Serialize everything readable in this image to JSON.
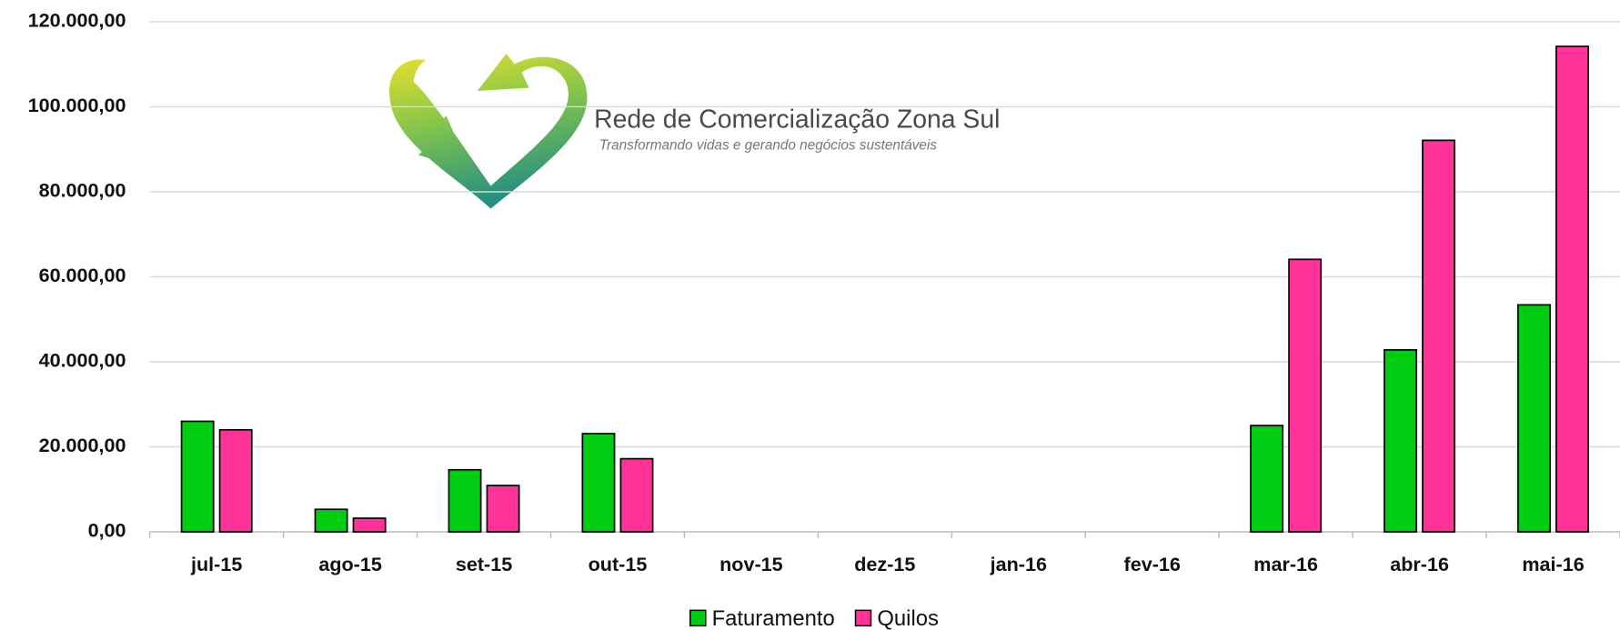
{
  "chart_data": {
    "type": "bar",
    "logo_title": "Rede de Comercialização Zona Sul",
    "logo_subtitle": "Transformando vidas e gerando negócios sustentáveis",
    "categories": [
      "jul-15",
      "ago-15",
      "set-15",
      "out-15",
      "nov-15",
      "dez-15",
      "jan-16",
      "fev-16",
      "mar-16",
      "abr-16",
      "mai-16"
    ],
    "series": [
      {
        "name": "Faturamento",
        "color": "#00cc11",
        "values": [
          26000,
          5300,
          14600,
          23100,
          0,
          0,
          0,
          0,
          25000,
          42800,
          53400
        ]
      },
      {
        "name": "Quilos",
        "color": "#ff3399",
        "values": [
          24000,
          3200,
          10900,
          17200,
          0,
          0,
          0,
          0,
          64100,
          92100,
          114200
        ]
      }
    ],
    "ylim": [
      0,
      120000
    ],
    "yticks": [
      {
        "value": 0,
        "label": "0,00"
      },
      {
        "value": 20000,
        "label": "20.000,00"
      },
      {
        "value": 40000,
        "label": "40.000,00"
      },
      {
        "value": 60000,
        "label": "60.000,00"
      },
      {
        "value": 80000,
        "label": "80.000,00"
      },
      {
        "value": 100000,
        "label": "100.000,00"
      },
      {
        "value": 120000,
        "label": "120.000,00"
      }
    ],
    "grid": true,
    "legend": "bottom"
  }
}
